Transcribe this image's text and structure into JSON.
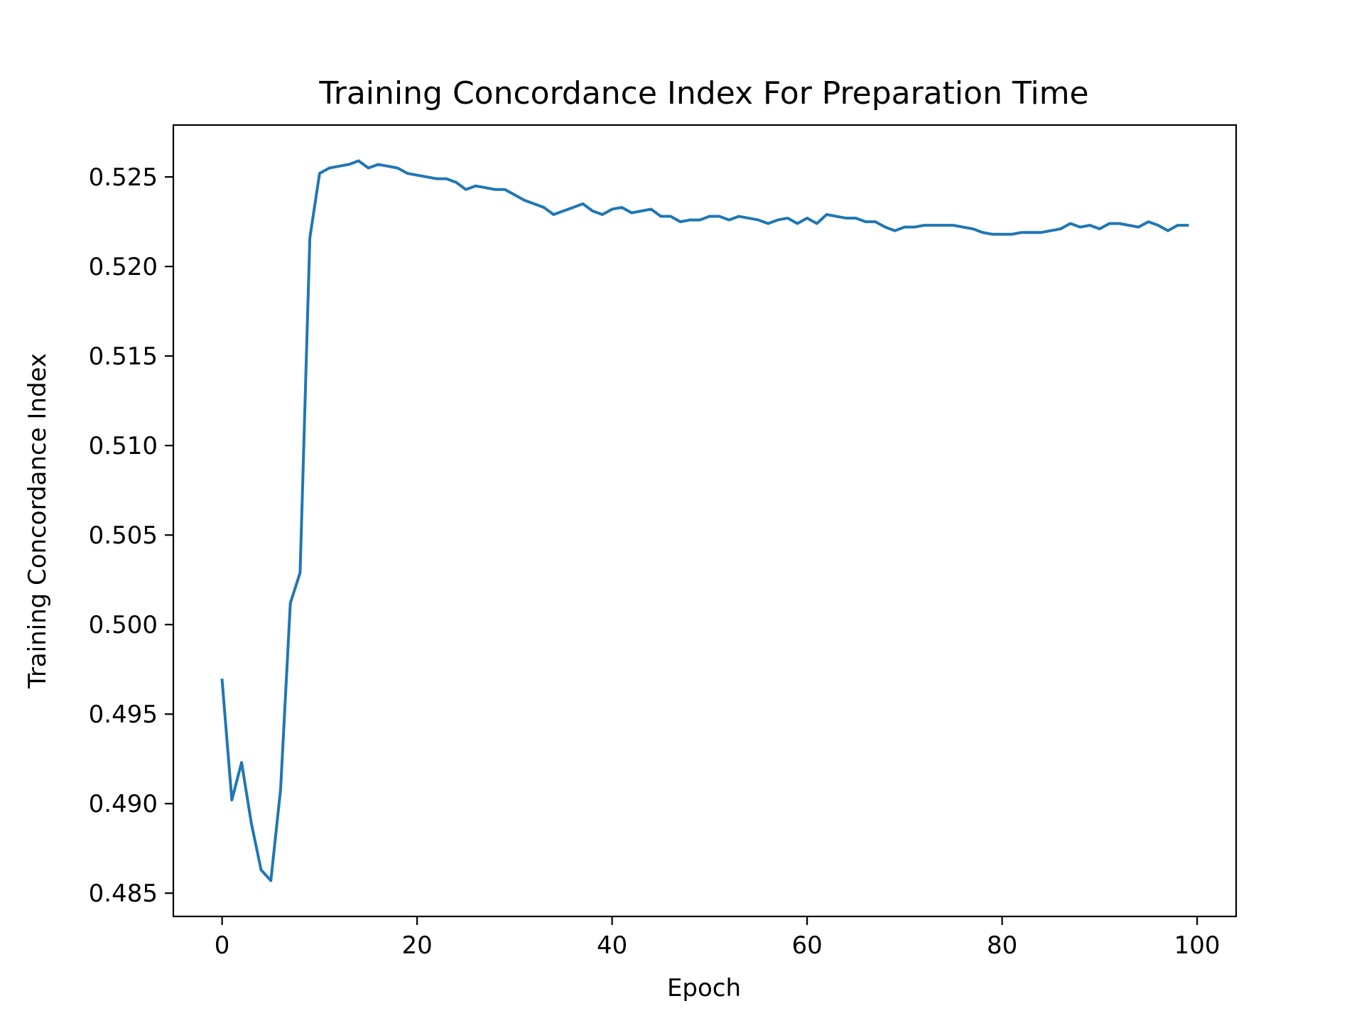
{
  "chart_data": {
    "type": "line",
    "title": "Training Concordance Index For Preparation Time",
    "xlabel": "Epoch",
    "ylabel": "Training Concordance Index",
    "xlim": [
      -5,
      104
    ],
    "ylim": [
      0.4837,
      0.5279
    ],
    "xticks": [
      0,
      20,
      40,
      60,
      80,
      100
    ],
    "yticks": [
      0.485,
      0.49,
      0.495,
      0.5,
      0.505,
      0.51,
      0.515,
      0.52,
      0.525
    ],
    "ytick_labels": [
      "0.485",
      "0.490",
      "0.495",
      "0.500",
      "0.505",
      "0.510",
      "0.515",
      "0.520",
      "0.525"
    ],
    "xtick_labels": [
      "0",
      "20",
      "40",
      "60",
      "80",
      "100"
    ],
    "grid": false,
    "series": [
      {
        "color": "#1f77b4",
        "x": [
          0,
          1,
          2,
          3,
          4,
          5,
          6,
          7,
          8,
          9,
          10,
          11,
          12,
          13,
          14,
          15,
          16,
          17,
          18,
          19,
          20,
          21,
          22,
          23,
          24,
          25,
          26,
          27,
          28,
          29,
          30,
          31,
          32,
          33,
          34,
          35,
          36,
          37,
          38,
          39,
          40,
          41,
          42,
          43,
          44,
          45,
          46,
          47,
          48,
          49,
          50,
          51,
          52,
          53,
          54,
          55,
          56,
          57,
          58,
          59,
          60,
          61,
          62,
          63,
          64,
          65,
          66,
          67,
          68,
          69,
          70,
          71,
          72,
          73,
          74,
          75,
          76,
          77,
          78,
          79,
          80,
          81,
          82,
          83,
          84,
          85,
          86,
          87,
          88,
          89,
          90,
          91,
          92,
          93,
          94,
          95,
          96,
          97,
          98,
          99
        ],
        "y": [
          0.4969,
          0.4902,
          0.4923,
          0.4889,
          0.4863,
          0.4857,
          0.4908,
          0.5012,
          0.5029,
          0.5216,
          0.5252,
          0.5255,
          0.5256,
          0.5257,
          0.5259,
          0.5255,
          0.5257,
          0.5256,
          0.5255,
          0.5252,
          0.5251,
          0.525,
          0.5249,
          0.5249,
          0.5247,
          0.5243,
          0.5245,
          0.5244,
          0.5243,
          0.5243,
          0.524,
          0.5237,
          0.5235,
          0.5233,
          0.5229,
          0.5231,
          0.5233,
          0.5235,
          0.5231,
          0.5229,
          0.5232,
          0.5233,
          0.523,
          0.5231,
          0.5232,
          0.5228,
          0.5228,
          0.5225,
          0.5226,
          0.5226,
          0.5228,
          0.5228,
          0.5226,
          0.5228,
          0.5227,
          0.5226,
          0.5224,
          0.5226,
          0.5227,
          0.5224,
          0.5227,
          0.5224,
          0.5229,
          0.5228,
          0.5227,
          0.5227,
          0.5225,
          0.5225,
          0.5222,
          0.522,
          0.5222,
          0.5222,
          0.5223,
          0.5223,
          0.5223,
          0.5223,
          0.5222,
          0.5221,
          0.5219,
          0.5218,
          0.5218,
          0.5218,
          0.5219,
          0.5219,
          0.5219,
          0.522,
          0.5221,
          0.5224,
          0.5222,
          0.5223,
          0.5221,
          0.5224,
          0.5224,
          0.5223,
          0.5222,
          0.5225,
          0.5223,
          0.522,
          0.5223,
          0.5223
        ]
      }
    ]
  }
}
